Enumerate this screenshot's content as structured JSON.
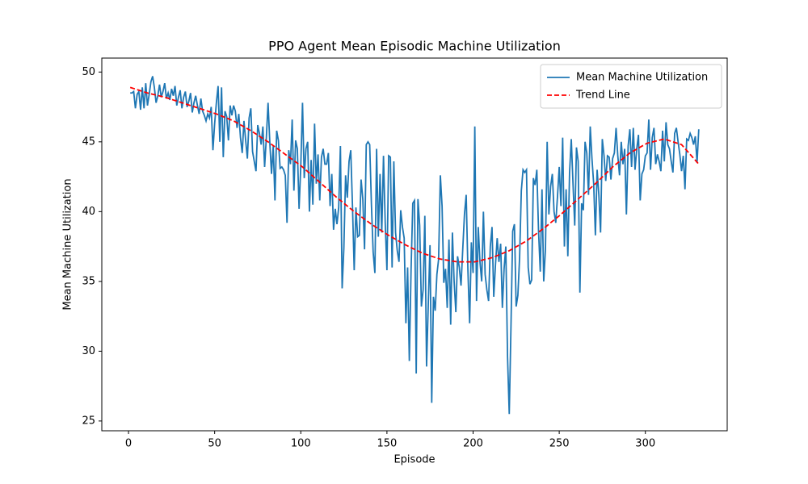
{
  "chart_data": {
    "type": "line",
    "title": "PPO Agent Mean Episodic Machine Utilization",
    "xlabel": "Episode",
    "ylabel": "Mean Machine Utilization",
    "xlim": [
      -15.5,
      347.5
    ],
    "ylim": [
      24.3,
      51.0
    ],
    "xticks": [
      0,
      50,
      100,
      150,
      200,
      250,
      300
    ],
    "yticks": [
      25,
      30,
      35,
      40,
      45,
      50
    ],
    "legend": "upper right",
    "series": [
      {
        "name": "Mean Machine Utilization",
        "color": "#1f77b4",
        "dash": "solid",
        "x": [
          1,
          2,
          3,
          4,
          5,
          6,
          7,
          8,
          9,
          10,
          11,
          12,
          13,
          14,
          15,
          16,
          17,
          18,
          19,
          20,
          21,
          22,
          23,
          24,
          25,
          26,
          27,
          28,
          29,
          30,
          31,
          32,
          33,
          34,
          35,
          36,
          37,
          38,
          39,
          40,
          41,
          42,
          43,
          44,
          45,
          46,
          47,
          48,
          49,
          50,
          51,
          52,
          53,
          54,
          55,
          56,
          57,
          58,
          59,
          60,
          61,
          62,
          63,
          64,
          65,
          66,
          67,
          68,
          69,
          70,
          71,
          72,
          73,
          74,
          75,
          76,
          77,
          78,
          79,
          80,
          81,
          82,
          83,
          84,
          85,
          86,
          87,
          88,
          89,
          90,
          91,
          92,
          93,
          94,
          95,
          96,
          97,
          98,
          99,
          100,
          101,
          102,
          103,
          104,
          105,
          106,
          107,
          108,
          109,
          110,
          111,
          112,
          113,
          114,
          115,
          116,
          117,
          118,
          119,
          120,
          121,
          122,
          123,
          124,
          125,
          126,
          127,
          128,
          129,
          130,
          131,
          132,
          133,
          134,
          135,
          136,
          137,
          138,
          139,
          140,
          141,
          142,
          143,
          144,
          145,
          146,
          147,
          148,
          149,
          150,
          151,
          152,
          153,
          154,
          155,
          156,
          157,
          158,
          159,
          160,
          161,
          162,
          163,
          164,
          165,
          166,
          167,
          168,
          169,
          170,
          171,
          172,
          173,
          174,
          175,
          176,
          177,
          178,
          179,
          180,
          181,
          182,
          183,
          184,
          185,
          186,
          187,
          188,
          189,
          190,
          191,
          192,
          193,
          194,
          195,
          196,
          197,
          198,
          199,
          200,
          201,
          202,
          203,
          204,
          205,
          206,
          207,
          208,
          209,
          210,
          211,
          212,
          213,
          214,
          215,
          216,
          217,
          218,
          219,
          220,
          221,
          222,
          223,
          224,
          225,
          226,
          227,
          228,
          229,
          230,
          231,
          232,
          233,
          234,
          235,
          236,
          237,
          238,
          239,
          240,
          241,
          242,
          243,
          244,
          245,
          246,
          247,
          248,
          249,
          250,
          251,
          252,
          253,
          254,
          255,
          256,
          257,
          258,
          259,
          260,
          261,
          262,
          263,
          264,
          265,
          266,
          267,
          268,
          269,
          270,
          271,
          272,
          273,
          274,
          275,
          276,
          277,
          278,
          279,
          280,
          281,
          282,
          283,
          284,
          285,
          286,
          287,
          288,
          289,
          290,
          291,
          292,
          293,
          294,
          295,
          296,
          297,
          298,
          299,
          300,
          301,
          302,
          303,
          304,
          305,
          306,
          307,
          308,
          309,
          310,
          311,
          312,
          313,
          314,
          315,
          316,
          317,
          318,
          319,
          320,
          321,
          322,
          323,
          324,
          325,
          326,
          327,
          328,
          329,
          330,
          331
        ],
        "values": [
          48.5,
          48.5,
          48.6,
          47.4,
          48.4,
          48.6,
          47.3,
          48.9,
          47.4,
          49.2,
          47.6,
          48.4,
          49.3,
          49.7,
          48.9,
          47.8,
          48.3,
          49.1,
          48.2,
          48.6,
          49.2,
          48.1,
          48.5,
          48.0,
          48.8,
          48.3,
          49.0,
          47.6,
          48.2,
          48.7,
          47.4,
          48.2,
          48.6,
          47.5,
          47.9,
          48.5,
          47.1,
          47.8,
          48.3,
          47.6,
          47.0,
          48.1,
          47.2,
          46.9,
          46.5,
          47.0,
          46.7,
          47.5,
          44.4,
          46.3,
          47.8,
          49.0,
          45.0,
          48.9,
          43.9,
          47.2,
          46.8,
          45.1,
          47.6,
          46.9,
          47.6,
          47.2,
          46.0,
          47.0,
          45.3,
          44.2,
          46.5,
          45.1,
          43.8,
          46.7,
          47.4,
          44.3,
          43.6,
          42.9,
          46.2,
          45.6,
          44.8,
          46.1,
          43.2,
          45.3,
          47.8,
          45.0,
          42.7,
          44.7,
          40.8,
          45.8,
          45.1,
          43.1,
          43.2,
          43.0,
          42.6,
          39.2,
          44.4,
          43.4,
          46.6,
          41.5,
          45.1,
          44.5,
          40.2,
          43.3,
          47.8,
          42.4,
          44.5,
          45.0,
          40.0,
          43.7,
          40.5,
          46.3,
          42.0,
          44.1,
          40.8,
          43.9,
          44.5,
          43.4,
          43.4,
          44.2,
          40.4,
          42.7,
          38.7,
          40.2,
          39.1,
          40.3,
          44.7,
          34.5,
          37.4,
          42.6,
          41.0,
          43.6,
          44.4,
          40.4,
          35.8,
          40.3,
          38.2,
          38.3,
          42.3,
          40.9,
          37.3,
          44.8,
          45.0,
          44.8,
          40.5,
          37.1,
          35.6,
          44.5,
          38.2,
          42.7,
          38.5,
          44.0,
          39.2,
          35.8,
          44.0,
          43.9,
          36.0,
          43.6,
          38.5,
          37.2,
          36.4,
          40.1,
          38.9,
          38.1,
          32.0,
          36.0,
          29.3,
          35.8,
          40.6,
          40.8,
          28.4,
          40.9,
          39.0,
          33.2,
          34.4,
          39.7,
          28.9,
          33.4,
          37.6,
          26.3,
          33.9,
          32.9,
          35.5,
          36.6,
          42.6,
          40.4,
          34.9,
          35.9,
          33.1,
          38.0,
          31.9,
          38.5,
          35.0,
          32.8,
          36.8,
          36.0,
          34.7,
          37.3,
          39.8,
          41.2,
          35.8,
          32.0,
          37.8,
          35.6,
          46.1,
          33.6,
          38.9,
          36.4,
          35.0,
          40.0,
          35.5,
          34.4,
          33.6,
          37.5,
          38.9,
          33.9,
          36.2,
          38.1,
          36.4,
          37.7,
          33.1,
          35.9,
          37.5,
          29.6,
          25.5,
          31.8,
          38.6,
          39.1,
          33.2,
          34.0,
          36.7,
          41.5,
          43.0,
          42.8,
          43.0,
          36.0,
          34.8,
          35.1,
          42.4,
          41.9,
          43.0,
          38.6,
          35.7,
          41.6,
          35.0,
          37.3,
          45.0,
          39.8,
          41.8,
          42.7,
          40.0,
          39.2,
          41.1,
          43.2,
          40.4,
          45.3,
          37.5,
          41.6,
          36.8,
          42.8,
          45.2,
          42.0,
          39.0,
          44.6,
          43.6,
          34.2,
          40.6,
          40.1,
          45.0,
          44.2,
          41.2,
          46.1,
          43.8,
          42.0,
          38.3,
          43.0,
          41.2,
          38.5,
          45.2,
          44.0,
          42.2,
          44.0,
          43.9,
          42.3,
          43.8,
          44.2,
          46.0,
          44.0,
          42.6,
          45.0,
          43.4,
          44.5,
          39.8,
          44.7,
          45.9,
          43.2,
          46.0,
          43.0,
          44.5,
          45.5,
          40.8,
          42.7,
          43.0,
          44.0,
          44.2,
          46.6,
          43.0,
          45.3,
          46.0,
          43.4,
          44.1,
          43.6,
          42.9,
          45.8,
          43.6,
          46.4,
          44.8,
          44.5,
          43.6,
          42.8,
          45.6,
          46.0,
          45.0,
          44.1,
          42.9,
          44.0,
          41.6,
          45.2,
          45.1,
          45.6,
          45.3,
          44.8,
          45.4,
          43.5,
          45.9
        ]
      },
      {
        "name": "Trend Line",
        "color": "#ff0000",
        "dash": "dashed",
        "x": [
          1,
          11,
          21,
          31,
          41,
          51,
          61,
          71,
          81,
          91,
          101,
          111,
          121,
          131,
          141,
          151,
          161,
          171,
          181,
          191,
          201,
          211,
          221,
          231,
          241,
          251,
          261,
          271,
          281,
          291,
          301,
          311,
          321,
          331
        ],
        "values": [
          48.9,
          48.5,
          48.2,
          47.8,
          47.4,
          47.0,
          46.5,
          45.8,
          45.0,
          44.1,
          43.2,
          42.1,
          41.0,
          40.0,
          39.1,
          38.3,
          37.6,
          37.0,
          36.6,
          36.4,
          36.4,
          36.7,
          37.2,
          37.9,
          38.8,
          39.8,
          40.9,
          42.0,
          43.2,
          44.2,
          44.9,
          45.2,
          44.8,
          43.4
        ]
      }
    ]
  }
}
